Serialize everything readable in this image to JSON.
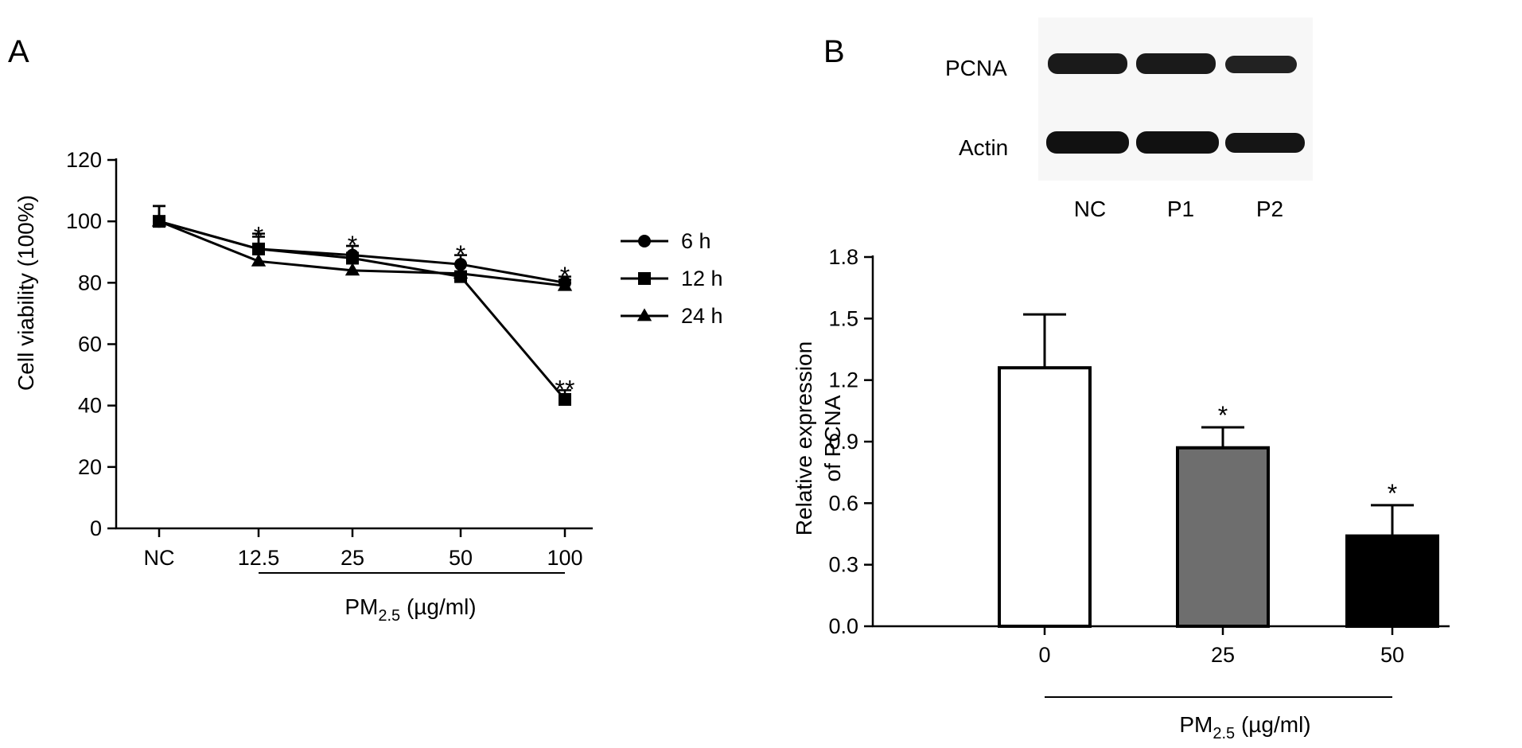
{
  "panel_a": {
    "letter": "A",
    "ylabel": "Cell viability (100%)",
    "xlabel_main": "PM",
    "xlabel_sub": "2.5",
    "xlabel_unit": " (µg/ml)"
  },
  "panel_b": {
    "letter": "B",
    "ylabel_line1": "Relative expression",
    "ylabel_line2": "of PCNA",
    "xlabel_main": "PM",
    "xlabel_sub": "2.5",
    "xlabel_unit": " (µg/ml)",
    "blot": {
      "rows": [
        "PCNA",
        "Actin"
      ],
      "lanes": [
        "NC",
        "P1",
        "P2"
      ],
      "colors": {
        "band": "#1a1a1a",
        "background": "#f7f7f7"
      }
    }
  },
  "chart_data": [
    {
      "type": "line",
      "categories": [
        "NC",
        "12.5",
        "25",
        "50",
        "100"
      ],
      "ylim": [
        0,
        120
      ],
      "yticks": [
        0,
        20,
        40,
        60,
        80,
        100,
        120
      ],
      "legend_position": "right",
      "grid": false,
      "series": [
        {
          "name": "6 h",
          "marker": "circle",
          "values": [
            100,
            91,
            89,
            86,
            80
          ],
          "errors": [
            5,
            4,
            3,
            3,
            2
          ]
        },
        {
          "name": "12 h",
          "marker": "square",
          "values": [
            100,
            91,
            88,
            82,
            42
          ],
          "errors": [
            5,
            5,
            4,
            4,
            3
          ]
        },
        {
          "name": "24 h",
          "marker": "triangle",
          "values": [
            100,
            87,
            84,
            83,
            79
          ],
          "errors": [
            5,
            3,
            3,
            3,
            2
          ]
        }
      ],
      "annotations": [
        {
          "category": "12.5",
          "text": "*",
          "y": 96
        },
        {
          "category": "25",
          "text": "*",
          "y": 93
        },
        {
          "category": "50",
          "text": "*",
          "y": 90
        },
        {
          "category": "100",
          "text": "*",
          "y": 83
        },
        {
          "category": "100",
          "text": "**",
          "y": 46
        }
      ]
    },
    {
      "type": "bar",
      "categories": [
        "0",
        "25",
        "50"
      ],
      "values": [
        1.26,
        0.87,
        0.44
      ],
      "errors": [
        0.26,
        0.1,
        0.15
      ],
      "colors": [
        "#ffffff",
        "#6e6e6e",
        "#000000"
      ],
      "ylim": [
        0,
        1.8
      ],
      "yticks": [
        "0.0",
        "0.3",
        "0.6",
        "0.9",
        "1.2",
        "1.5",
        "1.8"
      ],
      "grid": false,
      "annotations": [
        {
          "category": "25",
          "text": "*"
        },
        {
          "category": "50",
          "text": "*"
        }
      ]
    }
  ]
}
